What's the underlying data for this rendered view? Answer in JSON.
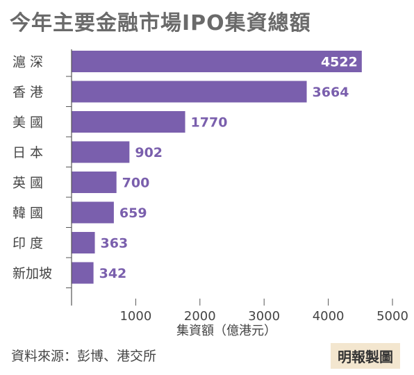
{
  "chart_data": {
    "type": "bar",
    "orientation": "horizontal",
    "title": "今年主要金融市場IPO集資總額",
    "categories": [
      "滬 深",
      "香 港",
      "美 國",
      "日 本",
      "英 國",
      "韓 國",
      "印 度",
      "新加坡"
    ],
    "values": [
      4522,
      3664,
      1770,
      902,
      700,
      659,
      363,
      342
    ],
    "xlabel": "集資額（億港元）",
    "ylabel": "",
    "xlim": [
      0,
      5000
    ],
    "xticks": [
      1000,
      2000,
      3000,
      4000,
      5000
    ],
    "grid": false,
    "legend": "none",
    "bar_color": "#7a5fad"
  },
  "footer": {
    "source": "資料來源：彭博、港交所",
    "credit": "明報製圖"
  }
}
